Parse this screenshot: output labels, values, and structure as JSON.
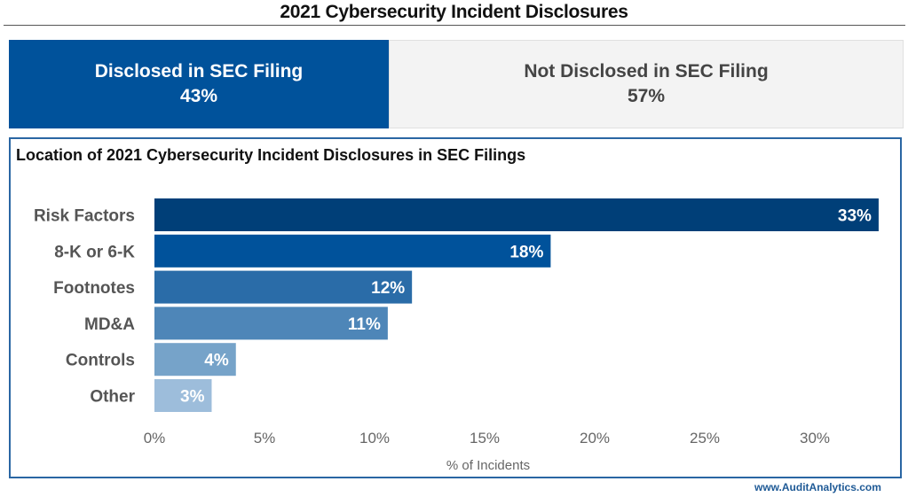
{
  "title": "2021 Cybersecurity Incident Disclosures",
  "summary": [
    {
      "label": "Disclosed in SEC Filing",
      "value": "43%",
      "color": "#00529b"
    },
    {
      "label": "Not Disclosed in SEC Filing",
      "value": "57%",
      "color": "#f3f3f3"
    }
  ],
  "footer": "www.AuditAnalytics.com",
  "chart_data": {
    "type": "bar",
    "orientation": "horizontal",
    "title": "Location of 2021 Cybersecurity Incident Disclosures in SEC Filings",
    "xlabel": "% of Incidents",
    "ylabel": "",
    "categories": [
      "Risk Factors",
      "8-K or 6-K",
      "Footnotes",
      "MD&A",
      "Controls",
      "Other"
    ],
    "values": [
      32.9,
      18.0,
      11.7,
      10.6,
      3.7,
      2.6
    ],
    "data_labels": [
      "33%",
      "18%",
      "12%",
      "11%",
      "4%",
      "3%"
    ],
    "colors": [
      "#003f78",
      "#00529b",
      "#2a6ca8",
      "#4e86b8",
      "#76a3c9",
      "#9dbddb"
    ],
    "xlim": [
      0,
      33
    ],
    "xticks": [
      0,
      5,
      10,
      15,
      20,
      25,
      30
    ],
    "xtick_labels": [
      "0%",
      "5%",
      "10%",
      "15%",
      "20%",
      "25%",
      "30%"
    ],
    "grid": false,
    "legend": "none"
  }
}
